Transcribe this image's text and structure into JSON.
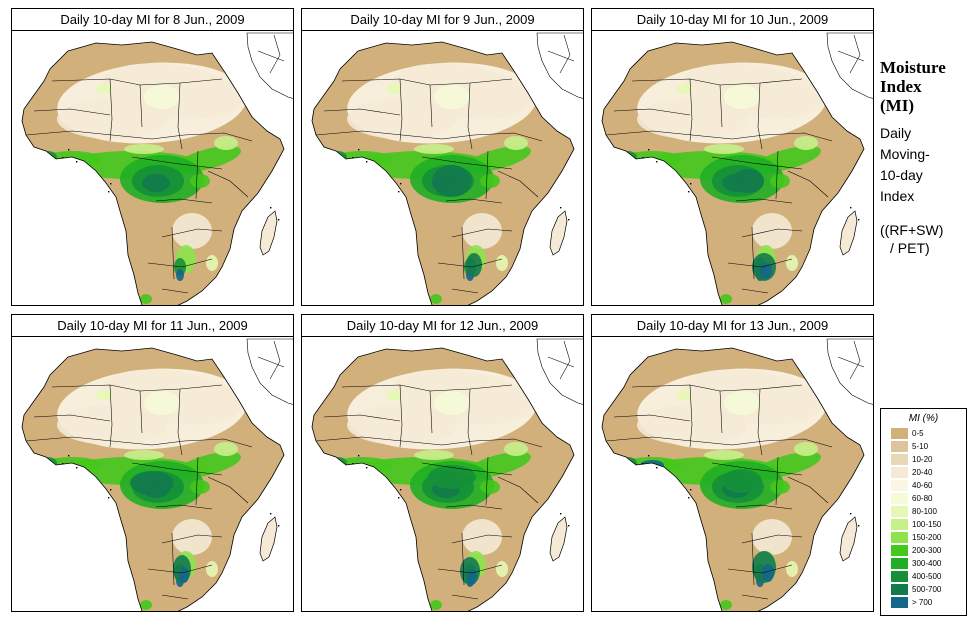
{
  "panels": [
    {
      "title": "Daily 10-day MI for  8 Jun., 2009"
    },
    {
      "title": "Daily 10-day MI for  9 Jun., 2009"
    },
    {
      "title": "Daily 10-day MI for 10 Jun., 2009"
    },
    {
      "title": "Daily 10-day MI for 11 Jun., 2009"
    },
    {
      "title": "Daily 10-day MI for 12 Jun., 2009"
    },
    {
      "title": "Daily 10-day MI for 13 Jun., 2009"
    }
  ],
  "side": {
    "heading_line1": "Moisture",
    "heading_line2": "Index",
    "heading_line3": "(MI)",
    "desc_line1": "Daily",
    "desc_line2": "Moving-",
    "desc_line3": "10-day",
    "desc_line4": "Index",
    "formula_line1": "((RF+SW)",
    "formula_line2": "/ PET)"
  },
  "legend": {
    "title": "MI (%)",
    "items": [
      {
        "label": "0-5",
        "color": "#d2b07c"
      },
      {
        "label": "5-10",
        "color": "#dec49c"
      },
      {
        "label": "10-20",
        "color": "#e9d8b8"
      },
      {
        "label": "20-40",
        "color": "#f4ead6"
      },
      {
        "label": "40-60",
        "color": "#fbf5e6"
      },
      {
        "label": "60-80",
        "color": "#f6fbd7"
      },
      {
        "label": "80-100",
        "color": "#e6f8b4"
      },
      {
        "label": "100-150",
        "color": "#c6f08a"
      },
      {
        "label": "150-200",
        "color": "#8ee24c"
      },
      {
        "label": "200-300",
        "color": "#43c81c"
      },
      {
        "label": "300-400",
        "color": "#1fae24"
      },
      {
        "label": "400-500",
        "color": "#159038"
      },
      {
        "label": "500-700",
        "color": "#137a4e"
      },
      {
        "label": "> 700",
        "color": "#136788"
      }
    ]
  }
}
